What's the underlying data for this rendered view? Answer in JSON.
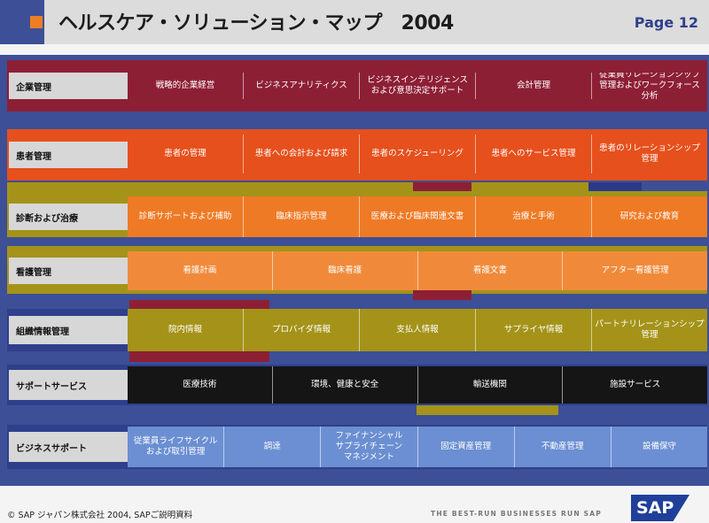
{
  "header": {
    "title": "ヘルスケア・ソリューション・マップ　2004",
    "page": "Page  12"
  },
  "rows": [
    {
      "label": "企業管理",
      "color": "#8d1f35",
      "text_color": "#ffffff",
      "cells": [
        "戦略的企業経営",
        "ビジネスアナリティクス",
        "ビジネスインテリジェンス\nおよび意思決定サポート",
        "会計管理",
        "従業員リレーションシップ\n管理およびワークフォース\n分析"
      ]
    },
    {
      "label": "患者管理",
      "color": "#e6501c",
      "text_color": "#ffffff",
      "cells": [
        "患者の管理",
        "患者への会計および請求",
        "患者のスケジューリング",
        "患者へのサービス管理",
        "患者のリレーションシップ\n管理"
      ]
    },
    {
      "label": "診断および治療",
      "color": "#ef7a25",
      "text_color": "#ffffff",
      "cells": [
        "診断サポートおよび補助",
        "臨床指示管理",
        "医療および臨床関連文書",
        "治療と手術",
        "研究および教育"
      ]
    },
    {
      "label": "看護管理",
      "color": "#f08a3a",
      "text_color": "#ffffff",
      "cells": [
        "看護計画",
        "臨床看護",
        "看護文書",
        "アフター看護管理"
      ]
    },
    {
      "label": "組織情報管理",
      "color": "#a49318",
      "text_color": "#ffffff",
      "cells": [
        "院内情報",
        "プロバイダ情報",
        "支払人情報",
        "サプライヤ情報",
        "パートナリレーションシップ\n管理"
      ]
    },
    {
      "label": "サポートサービス",
      "color": "#151515",
      "text_color": "#ffffff",
      "cells": [
        "医療技術",
        "環境、健康と安全",
        "輸送機関",
        "施設サービス"
      ]
    },
    {
      "label": "ビジネスサポート",
      "color": "#6b8fd2",
      "text_color": "#ffffff",
      "cells": [
        "従業員ライフサイクル\nおよび取引管理",
        "調達",
        "ファイナンシャル\nサプライチェーン\nマネジメント",
        "固定資産管理",
        "不動産管理",
        "設備保守"
      ]
    }
  ],
  "footer": {
    "copyright": "© SAP ジャパン株式会社 2004, SAPご説明資料",
    "tagline": "THE BEST-RUN BUSINESSES RUN SAP",
    "logo_text": "SAP"
  },
  "colors": {
    "board": "#3d4f96",
    "header_accent": "#ee7d23",
    "label_bg": "#d7d7d7",
    "olive": "#a49318",
    "crimson": "#8d1f35"
  }
}
